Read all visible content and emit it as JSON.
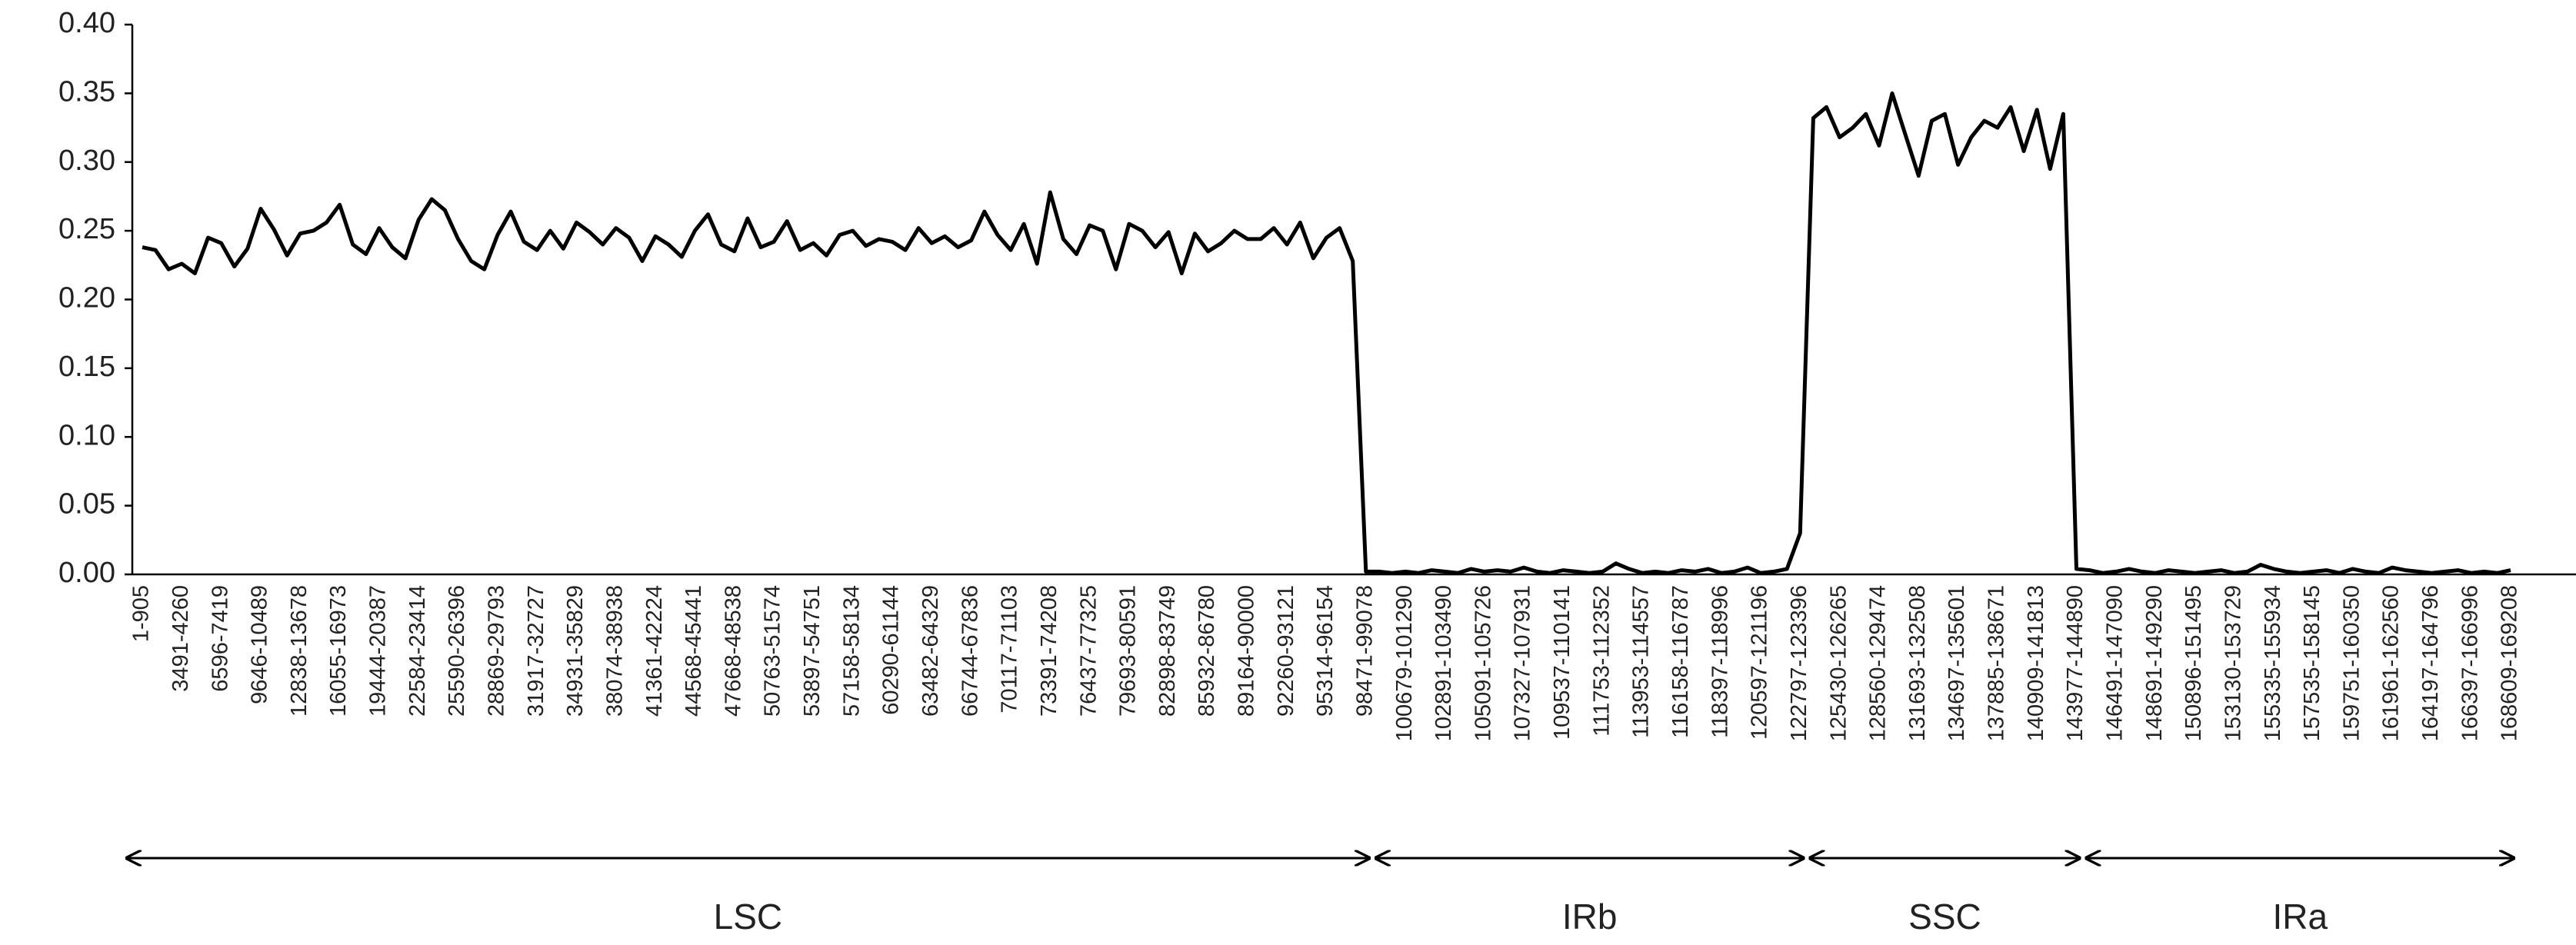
{
  "chart_data": {
    "type": "line",
    "color": "#000000",
    "categories": [
      "1-905",
      null,
      null,
      "3491-4260",
      null,
      null,
      "6596-7419",
      null,
      null,
      "9646-10489",
      null,
      null,
      "12838-13678",
      null,
      null,
      "16055-16973",
      null,
      null,
      "19444-20387",
      null,
      null,
      "22584-23414",
      null,
      null,
      "25590-26396",
      null,
      null,
      "28869-29793",
      null,
      null,
      "31917-32727",
      null,
      null,
      "34931-35829",
      null,
      null,
      "38074-38938",
      null,
      null,
      "41361-42224",
      null,
      null,
      "44568-45441",
      null,
      null,
      "47668-48538",
      null,
      null,
      "50763-51574",
      null,
      null,
      "53897-54751",
      null,
      null,
      "57158-58134",
      null,
      null,
      "60290-61144",
      null,
      null,
      "63482-64329",
      null,
      null,
      "66744-67836",
      null,
      null,
      "70117-71103",
      null,
      null,
      "73391-74208",
      null,
      null,
      "76437-77325",
      null,
      null,
      "79693-80591",
      null,
      null,
      "82898-83749",
      null,
      null,
      "85932-86780",
      null,
      null,
      "89164-90000",
      null,
      null,
      "92260-93121",
      null,
      null,
      "95314-96154",
      null,
      null,
      "98471-99078",
      null,
      null,
      "100679-101290",
      null,
      null,
      "102891-103490",
      null,
      null,
      "105091-105726",
      null,
      null,
      "107327-107931",
      null,
      null,
      "109537-110141",
      null,
      null,
      "111753-112352",
      null,
      null,
      "113953-114557",
      null,
      null,
      "116158-116787",
      null,
      null,
      "118397-118996",
      null,
      null,
      "120597-121196",
      null,
      null,
      "122797-123396",
      null,
      null,
      "125430-126265",
      null,
      null,
      "128560-129474",
      null,
      null,
      "131693-132508",
      null,
      null,
      "134697-135601",
      null,
      null,
      "137885-138671",
      null,
      null,
      "140909-141813",
      null,
      null,
      "143977-144890",
      null,
      null,
      "146491-147090",
      null,
      null,
      "148691-149290",
      null,
      null,
      "150896-151495",
      null,
      null,
      "153130-153729",
      null,
      null,
      "155335-155934",
      null,
      null,
      "157535-158145",
      null,
      null,
      "159751-160350",
      null,
      null,
      "161961-162560",
      null,
      null,
      "164197-164796",
      null,
      null,
      "166397-166996",
      null,
      null,
      "168609-169208"
    ],
    "values": [
      0.238,
      0.236,
      0.222,
      0.226,
      0.219,
      0.245,
      0.241,
      0.224,
      0.237,
      0.266,
      0.251,
      0.232,
      0.248,
      0.25,
      0.256,
      0.269,
      0.24,
      0.233,
      0.252,
      0.238,
      0.23,
      0.258,
      0.273,
      0.265,
      0.244,
      0.228,
      0.222,
      0.247,
      0.264,
      0.242,
      0.236,
      0.25,
      0.237,
      0.256,
      0.249,
      0.24,
      0.252,
      0.245,
      0.228,
      0.246,
      0.24,
      0.231,
      0.25,
      0.262,
      0.24,
      0.235,
      0.259,
      0.238,
      0.242,
      0.257,
      0.236,
      0.241,
      0.232,
      0.247,
      0.25,
      0.239,
      0.244,
      0.242,
      0.236,
      0.252,
      0.241,
      0.246,
      0.238,
      0.243,
      0.264,
      0.247,
      0.236,
      0.255,
      0.226,
      0.278,
      0.244,
      0.233,
      0.254,
      0.25,
      0.222,
      0.255,
      0.25,
      0.238,
      0.249,
      0.219,
      0.248,
      0.235,
      0.241,
      0.25,
      0.244,
      0.244,
      0.252,
      0.24,
      0.256,
      0.23,
      0.245,
      0.252,
      0.228,
      0.002,
      0.002,
      0.001,
      0.002,
      0.001,
      0.003,
      0.002,
      0.001,
      0.004,
      0.002,
      0.003,
      0.002,
      0.005,
      0.002,
      0.001,
      0.003,
      0.002,
      0.001,
      0.002,
      0.008,
      0.004,
      0.001,
      0.002,
      0.001,
      0.003,
      0.002,
      0.004,
      0.001,
      0.002,
      0.005,
      0.001,
      0.002,
      0.004,
      0.03,
      0.332,
      0.34,
      0.318,
      0.325,
      0.335,
      0.312,
      0.35,
      0.32,
      0.29,
      0.33,
      0.335,
      0.298,
      0.318,
      0.33,
      0.325,
      0.34,
      0.308,
      0.338,
      0.295,
      0.335,
      0.004,
      0.003,
      0.001,
      0.002,
      0.004,
      0.002,
      0.001,
      0.003,
      0.002,
      0.001,
      0.002,
      0.003,
      0.001,
      0.002,
      0.007,
      0.004,
      0.002,
      0.001,
      0.002,
      0.003,
      0.001,
      0.004,
      0.002,
      0.001,
      0.005,
      0.003,
      0.002,
      0.001,
      0.002,
      0.003,
      0.001,
      0.002,
      0.001,
      0.003
    ],
    "ylim": [
      0,
      0.4
    ],
    "yticks": [
      {
        "value": 0,
        "label": "0.00"
      },
      {
        "value": 0.05,
        "label": "0.05"
      },
      {
        "value": 0.1,
        "label": "0.10"
      },
      {
        "value": 0.15,
        "label": "0.15"
      },
      {
        "value": 0.2,
        "label": "0.20"
      },
      {
        "value": 0.25,
        "label": "0.25"
      },
      {
        "value": 0.3,
        "label": "0.30"
      },
      {
        "value": 0.35,
        "label": "0.35"
      },
      {
        "value": 0.4,
        "label": "0.40"
      }
    ],
    "grid": false,
    "regions": [
      {
        "label": "LSC"
      },
      {
        "label": "IRb"
      },
      {
        "label": "SSC"
      },
      {
        "label": "IRa"
      }
    ]
  }
}
